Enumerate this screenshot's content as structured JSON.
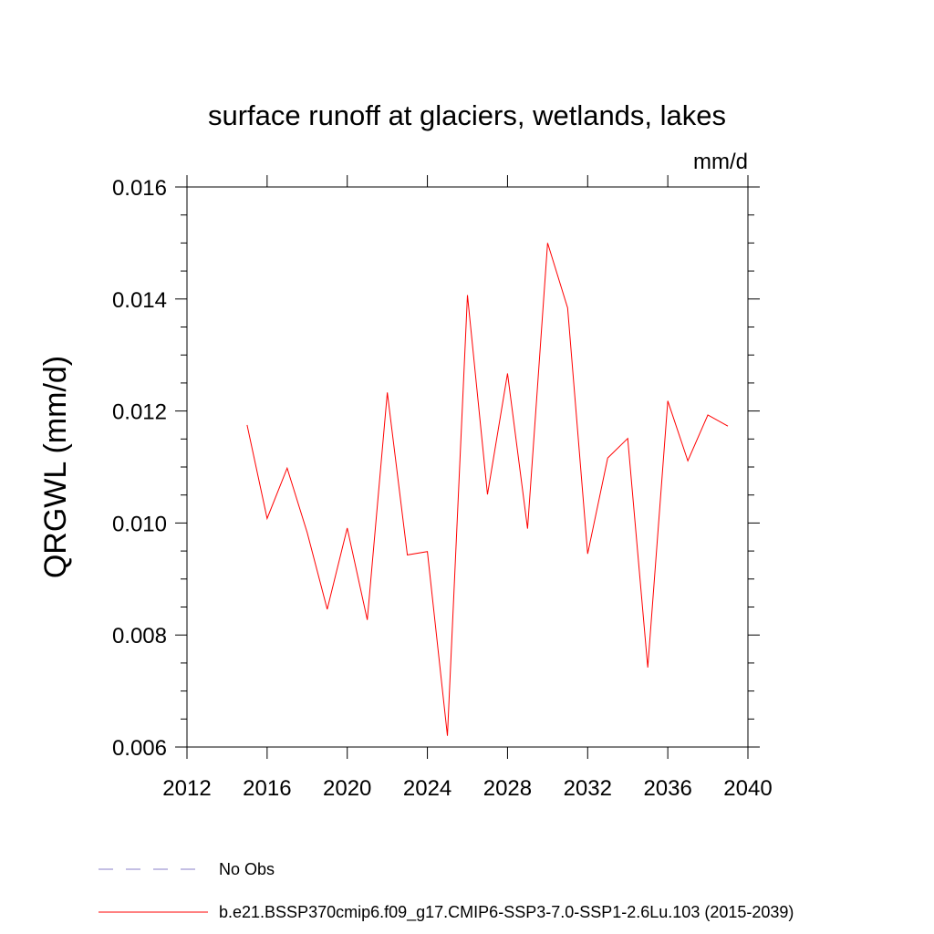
{
  "chart_data": {
    "type": "line",
    "title": "surface runoff at glaciers, wetlands, lakes",
    "units_label": "mm/d",
    "xlabel": "",
    "ylabel": "QRGWL  (mm/d)",
    "xlim": [
      2012,
      2040
    ],
    "ylim": [
      0.006,
      0.016
    ],
    "x_ticks": [
      2012,
      2016,
      2020,
      2024,
      2028,
      2032,
      2036,
      2040
    ],
    "x_tick_labels": [
      "2012",
      "2016",
      "2020",
      "2024",
      "2028",
      "2032",
      "2036",
      "2040"
    ],
    "y_ticks": [
      0.006,
      0.008,
      0.01,
      0.012,
      0.014,
      0.016
    ],
    "y_tick_labels": [
      "0.006",
      "0.008",
      "0.010",
      "0.012",
      "0.014",
      "0.016"
    ],
    "grid": false,
    "legend_position": "bottom",
    "series": [
      {
        "name": "No Obs",
        "color": "#8a7fc8",
        "dash": "dashed",
        "x": [],
        "values": []
      },
      {
        "name": "b.e21.BSSP370cmip6.f09_g17.CMIP6-SSP3-7.0-SSP1-2.6Lu.103 (2015-2039)",
        "color": "#ff0000",
        "dash": "solid",
        "x": [
          2015,
          2016,
          2017,
          2018,
          2019,
          2020,
          2021,
          2022,
          2023,
          2024,
          2025,
          2026,
          2027,
          2028,
          2029,
          2030,
          2031,
          2032,
          2033,
          2034,
          2035,
          2036,
          2037,
          2038,
          2039
        ],
        "values": [
          0.01175,
          0.01008,
          0.01098,
          0.00983,
          0.00846,
          0.00991,
          0.00827,
          0.01233,
          0.00943,
          0.00949,
          0.0062,
          0.01407,
          0.01051,
          0.01267,
          0.0099,
          0.015,
          0.01384,
          0.00945,
          0.01116,
          0.01151,
          0.00742,
          0.01218,
          0.01111,
          0.01193,
          0.01173
        ]
      }
    ]
  }
}
